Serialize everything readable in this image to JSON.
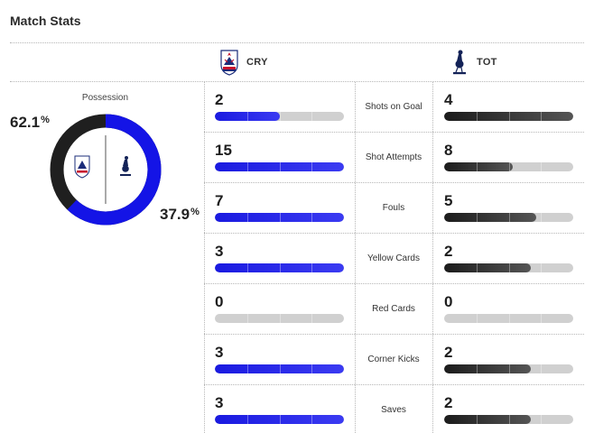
{
  "header": {
    "title": "Match Stats"
  },
  "teams": {
    "home": {
      "abbr": "CRY",
      "color": "#1414e6"
    },
    "away": {
      "abbr": "TOT",
      "color": "#1f1f1f"
    }
  },
  "possession": {
    "label": "Possession",
    "home_value": "62.1",
    "away_value": "37.9",
    "unit": "%",
    "home_fraction": 0.621
  },
  "stats": [
    {
      "label": "Shots on Goal",
      "home": "2",
      "away": "4",
      "home_fill": 0.5,
      "away_fill": 1.0
    },
    {
      "label": "Shot Attempts",
      "home": "15",
      "away": "8",
      "home_fill": 1.0,
      "away_fill": 0.53
    },
    {
      "label": "Fouls",
      "home": "7",
      "away": "5",
      "home_fill": 1.0,
      "away_fill": 0.71
    },
    {
      "label": "Yellow Cards",
      "home": "3",
      "away": "2",
      "home_fill": 1.0,
      "away_fill": 0.67
    },
    {
      "label": "Red Cards",
      "home": "0",
      "away": "0",
      "home_fill": 0,
      "away_fill": 0
    },
    {
      "label": "Corner Kicks",
      "home": "3",
      "away": "2",
      "home_fill": 1.0,
      "away_fill": 0.67
    },
    {
      "label": "Saves",
      "home": "3",
      "away": "2",
      "home_fill": 1.0,
      "away_fill": 0.67
    }
  ]
}
